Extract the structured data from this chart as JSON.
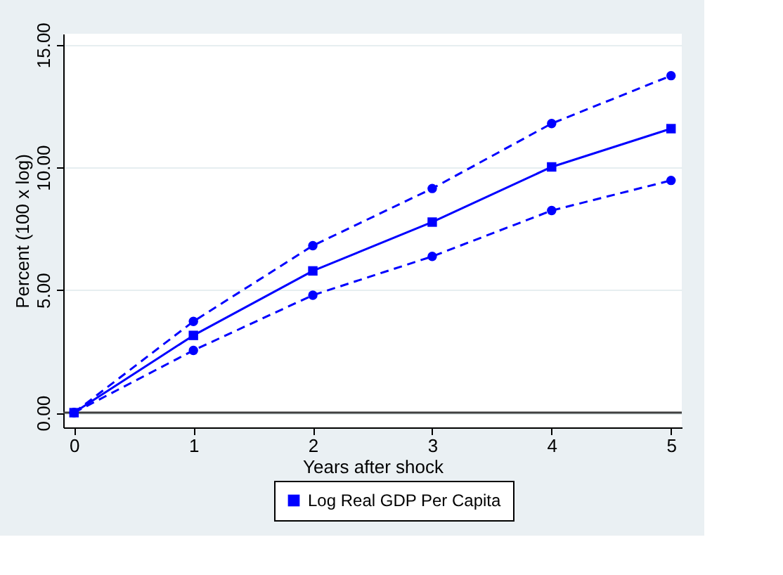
{
  "chart_data": {
    "type": "line",
    "xlabel": "Years after shock",
    "ylabel": "Percent (100 x log)",
    "x": [
      0,
      1,
      2,
      3,
      4,
      5
    ],
    "series": [
      {
        "name": "Log Real GDP Per Capita",
        "color": "#0000ff",
        "values": [
          0,
          3.15,
          5.78,
          7.77,
          10.02,
          11.58
        ],
        "marker": "square",
        "line_style": "solid"
      },
      {
        "color": "#0000ff",
        "values": [
          0,
          3.72,
          6.81,
          9.14,
          11.79,
          13.74
        ],
        "marker": "circle",
        "line_style": "dashed"
      },
      {
        "color": "#0000ff",
        "values": [
          0,
          2.54,
          4.79,
          6.37,
          8.24,
          9.47
        ],
        "marker": "circle",
        "line_style": "dashed"
      }
    ],
    "xlim": [
      -0.09,
      5.09
    ],
    "ylim": [
      -0.6,
      15.45
    ],
    "xticks": [
      0,
      1,
      2,
      3,
      4,
      5
    ],
    "yticks": [
      {
        "value": 0,
        "label": "0.00"
      },
      {
        "value": 5,
        "label": "5.00"
      },
      {
        "value": 10,
        "label": "10.00"
      },
      {
        "value": 15,
        "label": "15.00"
      }
    ],
    "ref_lines": [
      {
        "axis": "y",
        "value": 0,
        "color": "#404040"
      }
    ],
    "grid": "y",
    "legend": "bottom"
  }
}
